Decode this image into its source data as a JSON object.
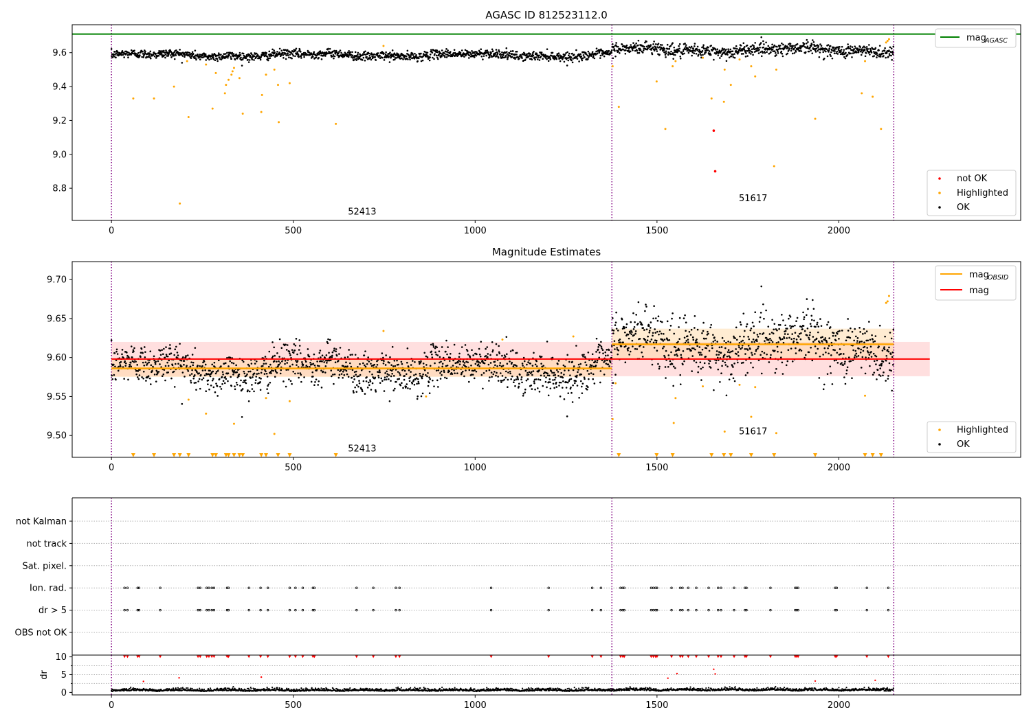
{
  "figure": {
    "top_title": "AGASC ID 812523112.0",
    "middle_title": "Magnitude Estimates"
  },
  "colors": {
    "ok": "#000000",
    "highlighted": "#ffa500",
    "not_ok": "#ff0000",
    "mag_agasc": "#008000",
    "mag": "#ff0000",
    "mag_obsid": "#ffa500",
    "obs_boundary": "#800080",
    "mag_band": "#ffc0c0",
    "obsid_band": "#ffd9a6"
  },
  "chart_data": [
    {
      "type": "scatter",
      "name": "top",
      "title": "AGASC ID 812523112.0",
      "xlim": [
        -108,
        2500
      ],
      "ylim": [
        8.61,
        9.765
      ],
      "xticks": [
        0,
        500,
        1000,
        1500,
        2000
      ],
      "yticks": [
        8.8,
        9.0,
        9.2,
        9.4,
        9.6
      ],
      "ytick_labels": [
        "8.8",
        "9.0",
        "9.2",
        "9.4",
        "9.6"
      ],
      "mag_agasc": 9.71,
      "obs_boundaries": [
        0,
        1376,
        2151
      ],
      "obsid_labels": [
        {
          "text": "52413",
          "x": 688,
          "y": 8.66
        },
        {
          "text": "51617",
          "x": 1763,
          "y": 8.74
        }
      ],
      "obsids": [
        {
          "start": 0,
          "end": 1376,
          "mean": 9.586,
          "std": 0.013,
          "wave": 0.009
        },
        {
          "start": 1376,
          "end": 2151,
          "mean": 9.617,
          "std": 0.019,
          "wave": 0.012
        }
      ],
      "highlighted": [
        [
          60,
          9.33
        ],
        [
          117,
          9.33
        ],
        [
          172,
          9.4
        ],
        [
          188,
          8.71
        ],
        [
          208,
          9.55
        ],
        [
          212,
          9.22
        ],
        [
          260,
          9.53
        ],
        [
          278,
          9.27
        ],
        [
          287,
          9.48
        ],
        [
          312,
          9.36
        ],
        [
          315,
          9.41
        ],
        [
          322,
          9.44
        ],
        [
          330,
          9.47
        ],
        [
          333,
          9.49
        ],
        [
          337,
          9.51
        ],
        [
          352,
          9.45
        ],
        [
          361,
          9.24
        ],
        [
          412,
          9.25
        ],
        [
          414,
          9.35
        ],
        [
          425,
          9.47
        ],
        [
          448,
          9.5
        ],
        [
          458,
          9.41
        ],
        [
          460,
          9.19
        ],
        [
          490,
          9.42
        ],
        [
          617,
          9.18
        ],
        [
          748,
          9.64
        ],
        [
          1378,
          9.52
        ],
        [
          1395,
          9.28
        ],
        [
          1499,
          9.43
        ],
        [
          1523,
          9.15
        ],
        [
          1543,
          9.52
        ],
        [
          1551,
          9.55
        ],
        [
          1626,
          9.57
        ],
        [
          1650,
          9.33
        ],
        [
          1684,
          9.31
        ],
        [
          1686,
          9.5
        ],
        [
          1703,
          9.41
        ],
        [
          1727,
          9.56
        ],
        [
          1759,
          9.52
        ],
        [
          1770,
          9.46
        ],
        [
          1822,
          8.93
        ],
        [
          1828,
          9.5
        ],
        [
          1935,
          9.21
        ],
        [
          2063,
          9.36
        ],
        [
          2072,
          9.55
        ],
        [
          2093,
          9.34
        ],
        [
          2116,
          9.15
        ],
        [
          2130,
          9.66
        ],
        [
          2134,
          9.67
        ],
        [
          2138,
          9.68
        ]
      ],
      "not_ok": [
        [
          1656,
          9.14
        ],
        [
          1660,
          8.9
        ]
      ],
      "legend": [
        "not OK",
        "Highlighted",
        "OK"
      ],
      "legend_lines": [
        {
          "label": "mag",
          "sub": "AGASC"
        }
      ]
    },
    {
      "type": "scatter",
      "name": "middle",
      "title": "Magnitude Estimates",
      "xlim": [
        -108,
        2500
      ],
      "ylim": [
        9.472,
        9.723
      ],
      "xticks": [
        0,
        500,
        1000,
        1500,
        2000
      ],
      "yticks": [
        9.5,
        9.55,
        9.6,
        9.65,
        9.7
      ],
      "ytick_labels": [
        "9.50",
        "9.55",
        "9.60",
        "9.65",
        "9.70"
      ],
      "mag": 9.598,
      "mag_band": [
        9.576,
        9.62
      ],
      "mag_x_range": [
        0,
        2250
      ],
      "obsid_bands": [
        {
          "x": [
            0,
            1376
          ],
          "mean": 9.586,
          "band": [
            9.575,
            9.597
          ]
        },
        {
          "x": [
            1376,
            2151
          ],
          "mean": 9.617,
          "band": [
            9.597,
            9.637
          ]
        }
      ],
      "obs_boundaries": [
        0,
        1376,
        2151
      ],
      "obsid_labels": [
        {
          "text": "52413",
          "x": 688,
          "y": 9.483
        },
        {
          "text": "51617",
          "x": 1763,
          "y": 9.505
        }
      ],
      "highlighted": [
        [
          212,
          9.546
        ],
        [
          260,
          9.528
        ],
        [
          337,
          9.515
        ],
        [
          425,
          9.548
        ],
        [
          448,
          9.502
        ],
        [
          490,
          9.544
        ],
        [
          748,
          9.634
        ],
        [
          865,
          9.55
        ],
        [
          1075,
          9.623
        ],
        [
          1270,
          9.627
        ],
        [
          1378,
          9.521
        ],
        [
          1386,
          9.567
        ],
        [
          1551,
          9.548
        ],
        [
          1546,
          9.516
        ],
        [
          1626,
          9.563
        ],
        [
          1686,
          9.505
        ],
        [
          1727,
          9.565
        ],
        [
          1759,
          9.524
        ],
        [
          1770,
          9.562
        ],
        [
          1828,
          9.503
        ],
        [
          2072,
          9.551
        ],
        [
          2130,
          9.67
        ],
        [
          2134,
          9.672
        ],
        [
          2138,
          9.679
        ]
      ],
      "below_axis_x": [
        60,
        117,
        172,
        188,
        212,
        278,
        287,
        315,
        322,
        337,
        352,
        361,
        412,
        425,
        458,
        490,
        617,
        1395,
        1499,
        1543,
        1650,
        1684,
        1703,
        1759,
        1822,
        1935,
        2072,
        2093,
        2116
      ],
      "legend": [
        "Highlighted",
        "OK"
      ],
      "legend_lines": [
        {
          "label": "mag",
          "sub": "OBSID"
        },
        {
          "label": "mag",
          "sub": ""
        }
      ]
    },
    {
      "type": "scatter",
      "name": "flags",
      "xlim": [
        -108,
        2500
      ],
      "categories": [
        "not Kalman",
        "not track",
        "Sat. pixel.",
        "Ion. rad.",
        "dr > 5",
        "OBS not OK"
      ],
      "obs_boundaries": [
        0,
        1376,
        2151
      ],
      "flag_x": [
        36,
        44,
        72,
        76,
        134,
        238,
        244,
        262,
        268,
        276,
        282,
        318,
        322,
        378,
        410,
        430,
        490,
        506,
        526,
        554,
        558,
        674,
        720,
        782,
        792,
        1044,
        1202,
        1322,
        1346,
        1400,
        1406,
        1410,
        1484,
        1490,
        1496,
        1500,
        1540,
        1564,
        1570,
        1586,
        1608,
        1642,
        1668,
        1676,
        1712,
        1742,
        1746,
        1812,
        1880,
        1884,
        1888,
        1990,
        1994,
        2077,
        2136
      ]
    },
    {
      "type": "scatter",
      "name": "dr",
      "xlim": [
        -108,
        2500
      ],
      "ylim": [
        -0.7,
        10.5
      ],
      "xticks": [
        0,
        500,
        1000,
        1500,
        2000
      ],
      "yticks": [
        0,
        5,
        10
      ],
      "ylabel": "dr",
      "obs_boundaries": [
        0,
        1376,
        2151
      ],
      "dr_clip": 10,
      "outliers": [
        [
          88,
          3.1
        ],
        [
          186,
          4.1
        ],
        [
          412,
          4.3
        ],
        [
          1530,
          4.0
        ],
        [
          1555,
          5.3
        ],
        [
          1656,
          6.5
        ],
        [
          1660,
          5.2
        ],
        [
          1935,
          3.2
        ],
        [
          2100,
          3.4
        ]
      ]
    }
  ]
}
